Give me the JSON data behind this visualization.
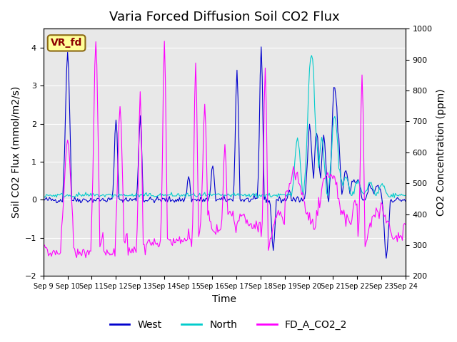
{
  "title": "Varia Forced Diffusion Soil CO2 Flux",
  "xlabel": "Time",
  "ylabel_left": "Soil CO2 Flux (mmol/m2/s)",
  "ylabel_right": "CO2 Concentration (ppm)",
  "ylim_left": [
    -2.0,
    4.5
  ],
  "ylim_right": [
    200,
    1000
  ],
  "xtick_labels": [
    "Sep 9",
    "Sep 10",
    "Sep 11",
    "Sep 12",
    "Sep 13",
    "Sep 14",
    "Sep 15",
    "Sep 16",
    "Sep 17",
    "Sep 18",
    "Sep 19",
    "Sep 20",
    "Sep 21",
    "Sep 22",
    "Sep 23",
    "Sep 24"
  ],
  "legend_entries": [
    "West",
    "North",
    "FD_A_CO2_2"
  ],
  "west_color": "#0000CD",
  "north_color": "#00CCCC",
  "co2_color": "#FF00FF",
  "background_color": "#E8E8E8",
  "figure_bg": "#FFFFFF",
  "annotation_text": "VR_fd",
  "annotation_color": "#8B0000",
  "annotation_bg": "#FFFF99",
  "grid_color": "#FFFFFF",
  "title_fontsize": 13,
  "label_fontsize": 10,
  "tick_fontsize": 8,
  "legend_fontsize": 10
}
